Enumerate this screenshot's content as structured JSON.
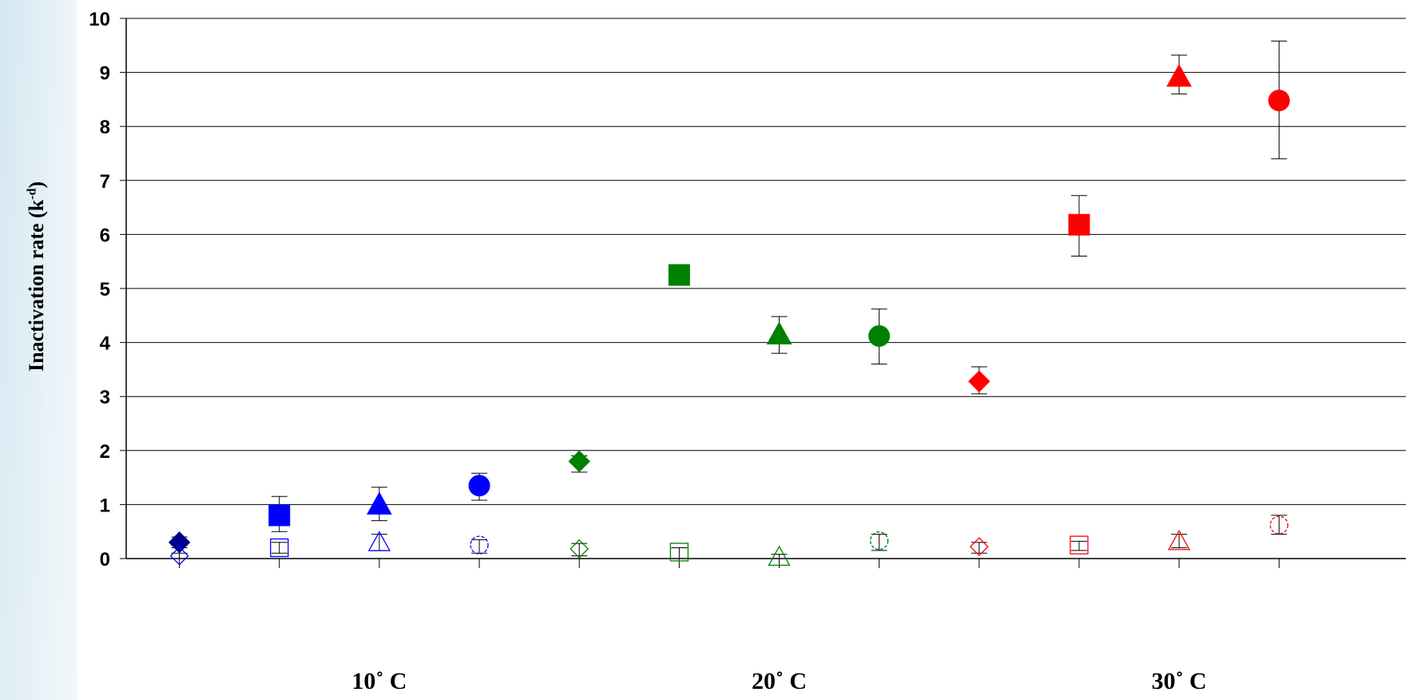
{
  "chart_data": {
    "type": "scatter",
    "title": "",
    "xlabel": "",
    "ylabel": {
      "text": "Inactivation rate (k",
      "sup": "-d",
      "close": ")"
    },
    "ylim": [
      0,
      10
    ],
    "yticks": [
      0,
      1,
      2,
      3,
      4,
      5,
      6,
      7,
      8,
      9,
      10
    ],
    "grid": true,
    "legend": "none",
    "x_slots": 12,
    "categories": [
      {
        "label": "10˚ C",
        "slot": 3
      },
      {
        "label": "20˚ C",
        "slot": 7
      },
      {
        "label": "30˚ C",
        "slot": 11
      }
    ],
    "colors": {
      "navy": "#00008B",
      "blue": "#0000FF",
      "green": "#008000",
      "red": "#FF0000"
    },
    "series": [
      {
        "x": 1,
        "marker": "diamond",
        "filled": true,
        "color": "#00008B",
        "y": 0.3,
        "err": [
          0.2,
          0.4
        ]
      },
      {
        "x": 1,
        "marker": "diamond",
        "filled": false,
        "color": "#0000FF",
        "y": 0.05,
        "err": [
          0.0,
          0.1
        ]
      },
      {
        "x": 2,
        "marker": "square",
        "filled": true,
        "color": "#0000FF",
        "y": 0.8,
        "err": [
          0.5,
          1.15
        ]
      },
      {
        "x": 2,
        "marker": "square",
        "filled": false,
        "color": "#0000FF",
        "y": 0.2,
        "err": [
          0.1,
          0.3
        ]
      },
      {
        "x": 3,
        "marker": "triangle",
        "filled": true,
        "color": "#0000FF",
        "y": 1.0,
        "err": [
          0.7,
          1.32
        ]
      },
      {
        "x": 3,
        "marker": "triangle",
        "filled": false,
        "color": "#0000FF",
        "y": 0.3,
        "err": [
          0.15,
          0.45
        ]
      },
      {
        "x": 4,
        "marker": "circle",
        "filled": true,
        "color": "#0000FF",
        "y": 1.35,
        "err": [
          1.08,
          1.58
        ]
      },
      {
        "x": 4,
        "marker": "circle",
        "filled": false,
        "color": "#0000FF",
        "y": 0.25,
        "err": [
          0.1,
          0.35
        ]
      },
      {
        "x": 5,
        "marker": "diamond",
        "filled": true,
        "color": "#008000",
        "y": 1.8,
        "err": [
          1.6,
          1.9
        ]
      },
      {
        "x": 5,
        "marker": "diamond",
        "filled": false,
        "color": "#008000",
        "y": 0.18,
        "err": [
          0.05,
          0.28
        ]
      },
      {
        "x": 6,
        "marker": "square",
        "filled": true,
        "color": "#008000",
        "y": 5.25,
        "err": [
          5.2,
          5.3
        ]
      },
      {
        "x": 6,
        "marker": "square",
        "filled": false,
        "color": "#008000",
        "y": 0.12,
        "err": [
          0.0,
          0.2
        ]
      },
      {
        "x": 7,
        "marker": "triangle",
        "filled": true,
        "color": "#008000",
        "y": 4.15,
        "err": [
          3.8,
          4.48
        ]
      },
      {
        "x": 7,
        "marker": "triangle",
        "filled": false,
        "color": "#008000",
        "y": 0.03,
        "err": [
          0.0,
          0.08
        ]
      },
      {
        "x": 8,
        "marker": "circle",
        "filled": true,
        "color": "#008000",
        "y": 4.12,
        "err": [
          3.6,
          4.62
        ]
      },
      {
        "x": 8,
        "marker": "circle",
        "filled": false,
        "color": "#008000",
        "y": 0.33,
        "err": [
          0.15,
          0.45
        ]
      },
      {
        "x": 9,
        "marker": "diamond",
        "filled": true,
        "color": "#FF0000",
        "y": 3.28,
        "err": [
          3.05,
          3.55
        ]
      },
      {
        "x": 9,
        "marker": "diamond",
        "filled": false,
        "color": "#FF0000",
        "y": 0.22,
        "err": [
          0.1,
          0.3
        ]
      },
      {
        "x": 10,
        "marker": "square",
        "filled": true,
        "color": "#FF0000",
        "y": 6.18,
        "err": [
          5.6,
          6.72
        ]
      },
      {
        "x": 10,
        "marker": "square",
        "filled": false,
        "color": "#FF0000",
        "y": 0.25,
        "err": [
          0.15,
          0.32
        ]
      },
      {
        "x": 11,
        "marker": "triangle",
        "filled": true,
        "color": "#FF0000",
        "y": 8.92,
        "err": [
          8.6,
          9.32
        ]
      },
      {
        "x": 11,
        "marker": "triangle",
        "filled": false,
        "color": "#FF0000",
        "y": 0.32,
        "err": [
          0.2,
          0.45
        ]
      },
      {
        "x": 12,
        "marker": "circle",
        "filled": true,
        "color": "#FF0000",
        "y": 8.48,
        "err": [
          7.4,
          9.58
        ]
      },
      {
        "x": 12,
        "marker": "circle",
        "filled": false,
        "color": "#FF0000",
        "y": 0.62,
        "err": [
          0.45,
          0.8
        ]
      }
    ]
  }
}
